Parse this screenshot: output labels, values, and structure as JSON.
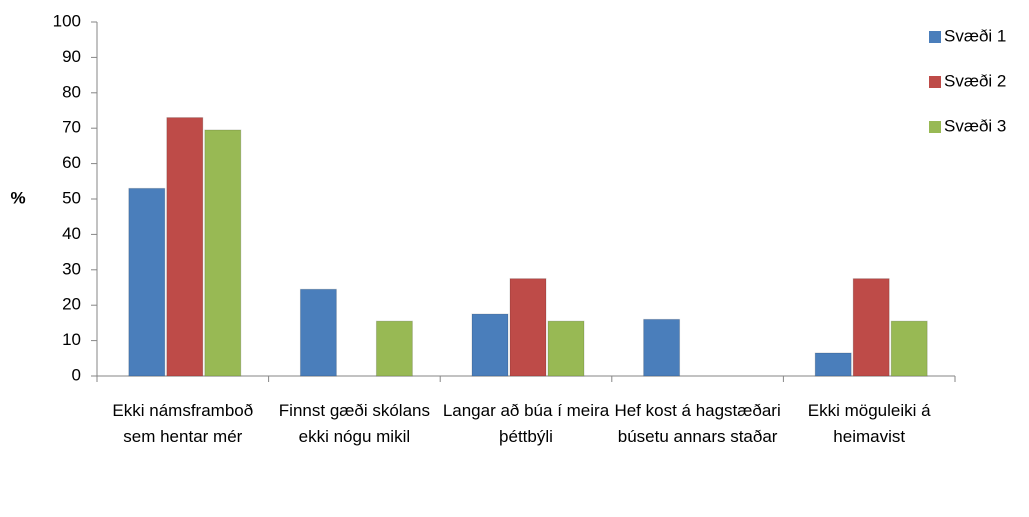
{
  "chart_data": {
    "type": "bar",
    "ylabel": "%",
    "categories": [
      "Ekki námsframboð sem hentar mér",
      "Finnst gæði skólans ekki nógu mikil",
      "Langar að búa í meira þéttbýli",
      "Hef kost á hagstæðari búsetu annars staðar",
      "Ekki möguleiki á heimavist"
    ],
    "series": [
      {
        "name": "Svæði 1",
        "color": "#4a7ebb",
        "values": [
          53,
          24.5,
          17.5,
          16,
          6.5
        ]
      },
      {
        "name": "Svæði 2",
        "color": "#be4b48",
        "values": [
          73,
          0,
          27.5,
          0,
          27.5
        ]
      },
      {
        "name": "Svæði 3",
        "color": "#98b954",
        "values": [
          69.5,
          15.5,
          15.5,
          0,
          15.5
        ]
      }
    ],
    "ylim": [
      0,
      100
    ],
    "yticks": [
      0,
      10,
      20,
      30,
      40,
      50,
      60,
      70,
      80,
      90,
      100
    ],
    "grid": false,
    "legend": "right"
  }
}
